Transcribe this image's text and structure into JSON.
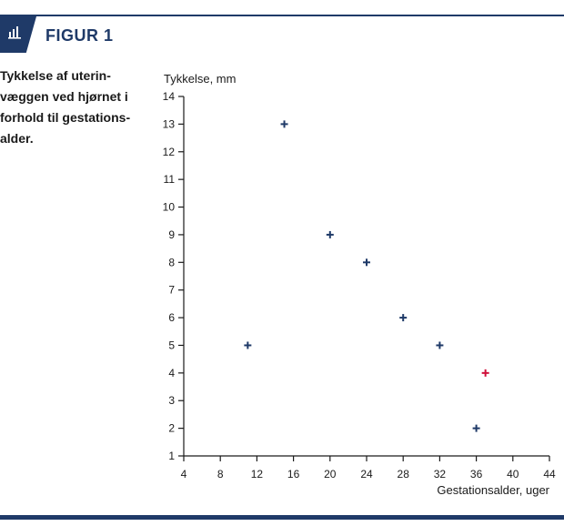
{
  "header": {
    "figure_label": "FIGUR 1",
    "caption": "Tykkelse af uterin-\nvæggen ved hjørnet i\nforhold til gestations-\nalder."
  },
  "icons": {
    "badge": "bar-chart-icon"
  },
  "colors": {
    "brand": "#1f3a68",
    "marker": "#1f3a68",
    "highlight": "#d0103a"
  },
  "chart_data": {
    "type": "scatter",
    "title": "",
    "xlabel": "Gestationsalder, uger",
    "ylabel": "Tykkelse, mm",
    "xlim": [
      4,
      44
    ],
    "ylim": [
      1,
      14
    ],
    "xticks": [
      4,
      8,
      12,
      16,
      20,
      24,
      28,
      32,
      36,
      40,
      44
    ],
    "yticks": [
      1,
      2,
      3,
      4,
      5,
      6,
      7,
      8,
      9,
      10,
      11,
      12,
      13,
      14
    ],
    "marker": "+",
    "grid": false,
    "points": [
      {
        "x": 11,
        "y": 5,
        "color": "#1f3a68"
      },
      {
        "x": 15,
        "y": 13,
        "color": "#1f3a68"
      },
      {
        "x": 20,
        "y": 9,
        "color": "#1f3a68"
      },
      {
        "x": 24,
        "y": 8,
        "color": "#1f3a68"
      },
      {
        "x": 28,
        "y": 6,
        "color": "#1f3a68"
      },
      {
        "x": 32,
        "y": 5,
        "color": "#1f3a68"
      },
      {
        "x": 36,
        "y": 2,
        "color": "#1f3a68"
      },
      {
        "x": 37,
        "y": 4,
        "color": "#d0103a"
      }
    ]
  }
}
